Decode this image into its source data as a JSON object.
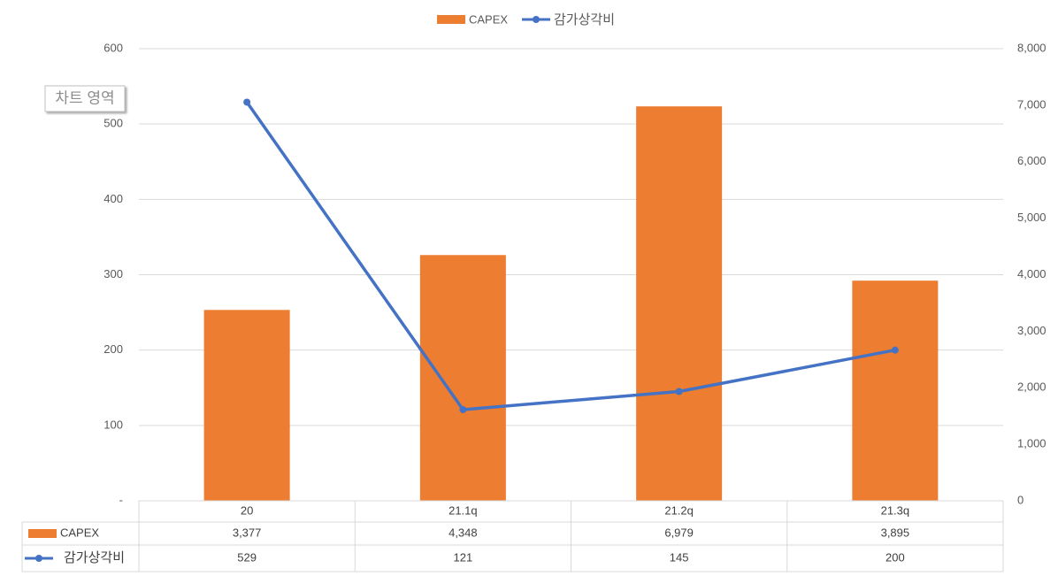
{
  "chart_data": {
    "type": "combo",
    "annotations": [
      "차트 영역"
    ],
    "categories": [
      "20",
      "21.1q",
      "21.2q",
      "21.3q"
    ],
    "series": [
      {
        "name": "CAPEX",
        "type": "bar",
        "axis": "y2",
        "color": "#ed7d31",
        "values": [
          3377,
          4348,
          6979,
          3895
        ],
        "value_labels": [
          "3,377",
          "4,348",
          "6,979",
          "3,895"
        ]
      },
      {
        "name": "감가상각비",
        "type": "line",
        "axis": "y",
        "color": "#4472c4",
        "values": [
          529,
          121,
          145,
          200
        ]
      }
    ],
    "ylim": [
      0,
      600
    ],
    "yticks": [
      {
        "value": 0,
        "label": "-"
      },
      100,
      200,
      300,
      400,
      500,
      600
    ],
    "y2lim": [
      0,
      8000
    ],
    "y2ticks": [
      0,
      {
        "value": 1000,
        "label": "1,000"
      },
      {
        "value": 2000,
        "label": "2,000"
      },
      {
        "value": 3000,
        "label": "3,000"
      },
      {
        "value": 4000,
        "label": "4,000"
      },
      {
        "value": 5000,
        "label": "5,000"
      },
      {
        "value": 6000,
        "label": "6,000"
      },
      {
        "value": 7000,
        "label": "7,000"
      },
      {
        "value": 8000,
        "label": "8,000"
      }
    ],
    "grid": true,
    "legend": "top",
    "data_table": true
  }
}
